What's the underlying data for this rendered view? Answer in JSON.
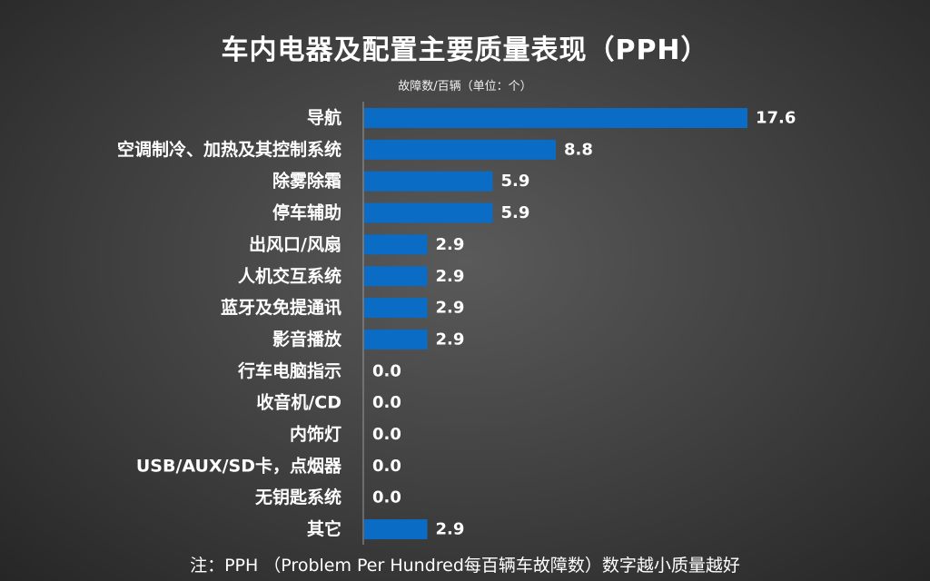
{
  "chart_data": {
    "type": "bar",
    "orientation": "horizontal",
    "title": "车内电器及配置主要质量表现（PPH）",
    "subtitle": "故障数/百辆（单位：个）",
    "categories": [
      "导航",
      "空调制冷、加热及其控制系统",
      "除雾除霜",
      "停车辅助",
      "出风口/风扇",
      "人机交互系统",
      "蓝牙及免提通讯",
      "影音播放",
      "行车电脑指示",
      "收音机/CD",
      "内饰灯",
      "USB/AUX/SD卡，点烟器",
      "无钥匙系统",
      "其它"
    ],
    "values": [
      17.6,
      8.8,
      5.9,
      5.9,
      2.9,
      2.9,
      2.9,
      2.9,
      0.0,
      0.0,
      0.0,
      0.0,
      0.0,
      2.9
    ],
    "value_labels": [
      "17.6",
      "8.8",
      "5.9",
      "5.9",
      "2.9",
      "2.9",
      "2.9",
      "2.9",
      "0.0",
      "0.0",
      "0.0",
      "0.0",
      "0.0",
      "2.9"
    ],
    "bar_color": "#0a6cc4",
    "grid": false,
    "xlim": [
      0,
      17.6
    ]
  },
  "footnote": "注：PPH （Problem Per Hundred每百辆车故障数）数字越小质量越好"
}
